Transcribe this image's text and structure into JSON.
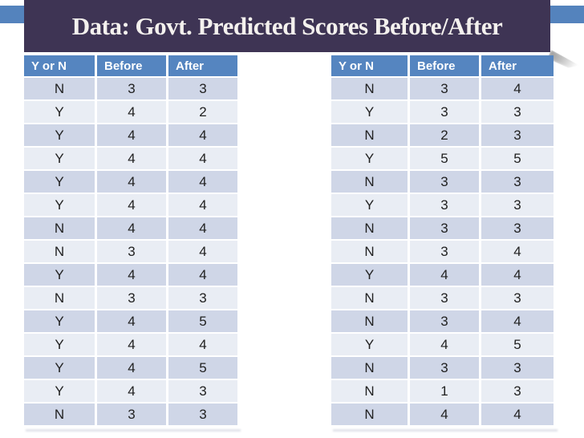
{
  "title": "Data: Govt. Predicted Scores Before/After",
  "colors": {
    "accent_blue": "#5483bd",
    "header_blue": "#5585c0",
    "banner_purple": "#3e3454",
    "band_dark": "#cfd6e7",
    "band_light": "#e9edf4"
  },
  "tables": {
    "headers": [
      "Y or N",
      "Before",
      "After"
    ],
    "left": {
      "rows": [
        [
          "N",
          "3",
          "3"
        ],
        [
          "Y",
          "4",
          "2"
        ],
        [
          "Y",
          "4",
          "4"
        ],
        [
          "Y",
          "4",
          "4"
        ],
        [
          "Y",
          "4",
          "4"
        ],
        [
          "Y",
          "4",
          "4"
        ],
        [
          "N",
          "4",
          "4"
        ],
        [
          "N",
          "3",
          "4"
        ],
        [
          "Y",
          "4",
          "4"
        ],
        [
          "N",
          "3",
          "3"
        ],
        [
          "Y",
          "4",
          "5"
        ],
        [
          "Y",
          "4",
          "4"
        ],
        [
          "Y",
          "4",
          "5"
        ],
        [
          "Y",
          "4",
          "3"
        ],
        [
          "N",
          "3",
          "3"
        ]
      ]
    },
    "right": {
      "rows": [
        [
          "N",
          "3",
          "4"
        ],
        [
          "Y",
          "3",
          "3"
        ],
        [
          "N",
          "2",
          "3"
        ],
        [
          "Y",
          "5",
          "5"
        ],
        [
          "N",
          "3",
          "3"
        ],
        [
          "Y",
          "3",
          "3"
        ],
        [
          "N",
          "3",
          "3"
        ],
        [
          "N",
          "3",
          "4"
        ],
        [
          "Y",
          "4",
          "4"
        ],
        [
          "N",
          "3",
          "3"
        ],
        [
          "N",
          "3",
          "4"
        ],
        [
          "Y",
          "4",
          "5"
        ],
        [
          "N",
          "3",
          "3"
        ],
        [
          "N",
          "1",
          "3"
        ],
        [
          "N",
          "4",
          "4"
        ]
      ]
    }
  }
}
